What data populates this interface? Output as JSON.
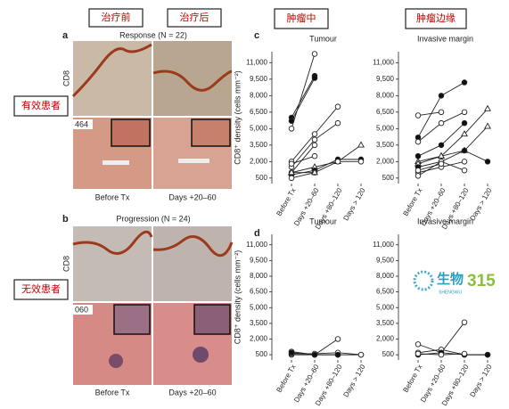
{
  "labels": {
    "before_cn": "治疗前",
    "after_cn": "治疗后",
    "tumour_cn": "肿瘤中",
    "margin_cn": "肿瘤边缘",
    "responder_cn": "有效患者",
    "nonresponder_cn": "无效患者"
  },
  "panel_a": {
    "letter": "a",
    "title": "Response (N = 22)",
    "stain": "CD8",
    "patient": "464",
    "captions": [
      "Before Tx",
      "Days +20–60"
    ]
  },
  "panel_b": {
    "letter": "b",
    "title": "Progression (N = 24)",
    "stain": "CD8",
    "patient": "060",
    "captions": [
      "Before Tx",
      "Days +20–60"
    ]
  },
  "panel_c": {
    "letter": "c"
  },
  "panel_d": {
    "letter": "d"
  },
  "watermark": {
    "cn": "生物",
    "number": "315",
    "pinyin": "SHENGWU"
  },
  "chart_data": [
    {
      "type": "line",
      "title": "Tumour",
      "ylabel": "CD8⁺ density (cells mm⁻²)",
      "categories": [
        "Before Tx",
        "Days +20–60",
        "Days +80–120",
        "Days > 120"
      ],
      "ylim": [
        0,
        12000
      ],
      "yticks": [
        500,
        {
          "value": 2000,
          "label": "2,000"
        },
        {
          "value": 3500,
          "label": "3,500"
        },
        {
          "value": 5000,
          "label": "5,000"
        },
        {
          "value": 6500,
          "label": "6,500"
        },
        {
          "value": 8000,
          "label": "8,000"
        },
        {
          "value": 9500,
          "label": "9,500"
        },
        {
          "value": 11000,
          "label": "11,000"
        }
      ],
      "series": [
        {
          "marker": "open",
          "values": [
            5000,
            11800,
            null,
            null
          ]
        },
        {
          "marker": "filled",
          "values": [
            6000,
            9800,
            null,
            null
          ]
        },
        {
          "marker": "filled",
          "values": [
            5700,
            9600,
            null,
            null
          ]
        },
        {
          "marker": "open",
          "values": [
            2000,
            4500,
            7000,
            null
          ]
        },
        {
          "marker": "open",
          "values": [
            1500,
            4000,
            5500,
            null
          ]
        },
        {
          "marker": "open",
          "values": [
            1000,
            3500,
            null,
            null
          ]
        },
        {
          "marker": "open",
          "values": [
            1800,
            2500,
            null,
            null
          ]
        },
        {
          "marker": "triangle",
          "values": [
            1000,
            1500,
            2000,
            3500
          ]
        },
        {
          "marker": "filled",
          "values": [
            800,
            1200,
            2200,
            2200
          ]
        },
        {
          "marker": "open",
          "values": [
            500,
            1000,
            2000,
            2000
          ]
        },
        {
          "marker": "triangle",
          "values": [
            1000,
            1000,
            null,
            null
          ]
        }
      ]
    },
    {
      "type": "line",
      "title": "Invasive margin",
      "categories": [
        "Before Tx",
        "Days +20–60",
        "Days +80–120",
        "Days > 120"
      ],
      "ylim": [
        0,
        12000
      ],
      "yticks": [
        500,
        {
          "value": 2000,
          "label": "2,000"
        },
        {
          "value": 3500,
          "label": "3,500"
        },
        {
          "value": 5000,
          "label": "5,000"
        },
        {
          "value": 6500,
          "label": "6,500"
        },
        {
          "value": 8000,
          "label": "8,000"
        },
        {
          "value": 9500,
          "label": "9,500"
        },
        {
          "value": 11000,
          "label": "11,000"
        }
      ],
      "series": [
        {
          "marker": "open",
          "values": [
            6200,
            6500,
            null,
            null
          ]
        },
        {
          "marker": "filled",
          "values": [
            4200,
            8000,
            9200,
            null
          ]
        },
        {
          "marker": "open",
          "values": [
            3800,
            5500,
            6500,
            null
          ]
        },
        {
          "marker": "filled",
          "values": [
            2500,
            3500,
            5500,
            null
          ]
        },
        {
          "marker": "triangle",
          "values": [
            2000,
            2500,
            4500,
            6800
          ]
        },
        {
          "marker": "triangle",
          "values": [
            1800,
            2500,
            3000,
            5200
          ]
        },
        {
          "marker": "filled",
          "values": [
            1500,
            2000,
            3000,
            2000
          ]
        },
        {
          "marker": "open",
          "values": [
            1000,
            1500,
            2000,
            null
          ]
        },
        {
          "marker": "open",
          "values": [
            700,
            2000,
            1200,
            null
          ]
        },
        {
          "marker": "open",
          "values": [
            1200,
            1800,
            null,
            null
          ]
        }
      ]
    },
    {
      "type": "line",
      "title": "Tumour",
      "ylabel": "CD8⁺ density (cells mm⁻²)",
      "categories": [
        "Before Tx",
        "Days +20–60",
        "Days +80–120",
        "Days > 120"
      ],
      "ylim": [
        0,
        12000
      ],
      "yticks": [
        500,
        {
          "value": 2000,
          "label": "2,000"
        },
        {
          "value": 3500,
          "label": "3,500"
        },
        {
          "value": 5000,
          "label": "5,000"
        },
        {
          "value": 6500,
          "label": "6,500"
        },
        {
          "value": 8000,
          "label": "8,000"
        },
        {
          "value": 9500,
          "label": "9,500"
        },
        {
          "value": 11000,
          "label": "11,000"
        }
      ],
      "series": [
        {
          "marker": "open",
          "values": [
            800,
            500,
            2000,
            null
          ]
        },
        {
          "marker": "open",
          "values": [
            500,
            500,
            500,
            500
          ]
        },
        {
          "marker": "open",
          "values": [
            600,
            600,
            700,
            500
          ]
        },
        {
          "marker": "filled",
          "values": [
            700,
            500,
            500,
            null
          ]
        }
      ]
    },
    {
      "type": "line",
      "title": "Invasive margin",
      "categories": [
        "Before Tx",
        "Days +20–60",
        "Days +80–120",
        "Days > 120"
      ],
      "ylim": [
        0,
        12000
      ],
      "yticks": [
        500,
        {
          "value": 2000,
          "label": "2,000"
        },
        {
          "value": 3500,
          "label": "3,500"
        },
        {
          "value": 5000,
          "label": "5,000"
        },
        {
          "value": 6500,
          "label": "6,500"
        },
        {
          "value": 8000,
          "label": "8,000"
        },
        {
          "value": 9500,
          "label": "9,500"
        },
        {
          "value": 11000,
          "label": "11,000"
        }
      ],
      "series": [
        {
          "marker": "open",
          "values": [
            1500,
            700,
            3600,
            null
          ]
        },
        {
          "marker": "open",
          "values": [
            700,
            1000,
            500,
            500
          ]
        },
        {
          "marker": "filled",
          "values": [
            500,
            700,
            500,
            500
          ]
        },
        {
          "marker": "open",
          "values": [
            600,
            500,
            600,
            null
          ]
        }
      ]
    }
  ]
}
